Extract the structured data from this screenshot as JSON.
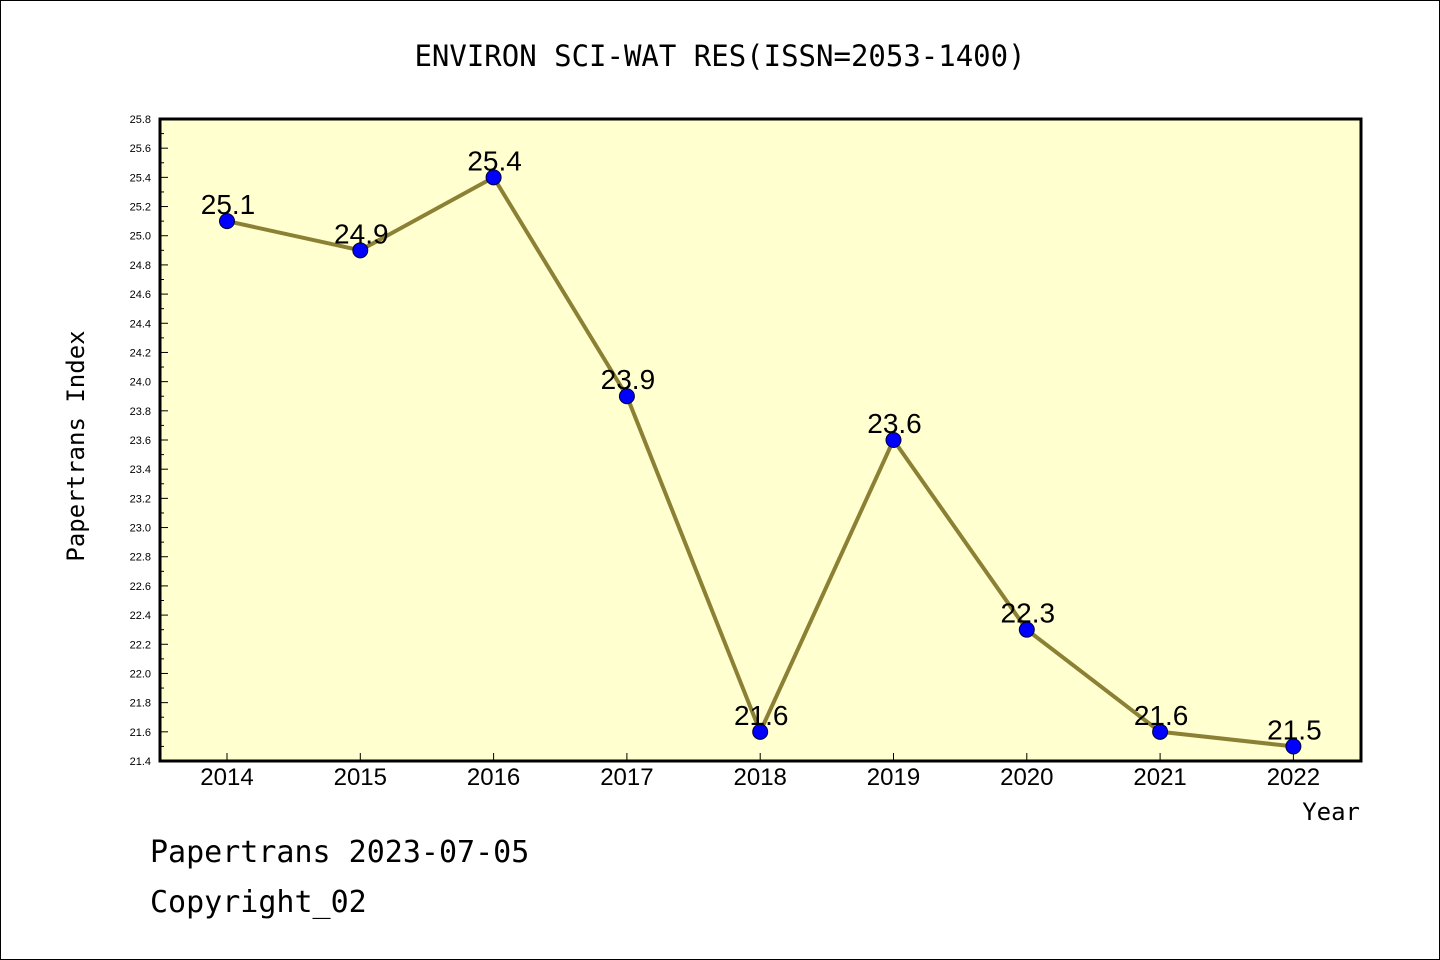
{
  "chart_data": {
    "type": "line",
    "title": "ENVIRON SCI-WAT RES(ISSN=2053-1400)",
    "xlabel": "Year",
    "ylabel": "Papertrans Index",
    "x": [
      "2014",
      "2015",
      "2016",
      "2017",
      "2018",
      "2019",
      "2020",
      "2021",
      "2022"
    ],
    "series": [
      {
        "values": [
          25.1,
          24.9,
          25.4,
          23.9,
          21.6,
          23.6,
          22.3,
          21.6,
          21.5
        ]
      }
    ],
    "data_labels": [
      "25.1",
      "24.9",
      "25.4",
      "23.9",
      "21.6",
      "23.6",
      "22.3",
      "21.6",
      "21.5"
    ],
    "ylim": [
      21.4,
      25.8
    ],
    "yticks": [
      "21.4",
      "21.6",
      "21.8",
      "22.0",
      "22.2",
      "22.4",
      "22.6",
      "22.8",
      "23.0",
      "23.2",
      "23.4",
      "23.6",
      "23.8",
      "24.0",
      "24.2",
      "24.4",
      "24.6",
      "24.8",
      "25.0",
      "25.2",
      "25.4",
      "25.6",
      "25.8"
    ],
    "grid": false,
    "colors": {
      "plot_bg": "#ffffd0",
      "line": "#8b8033",
      "marker": "#0000ff"
    }
  },
  "footer": {
    "line1": "Papertrans 2023-07-05",
    "line2": "Copyright_02"
  }
}
